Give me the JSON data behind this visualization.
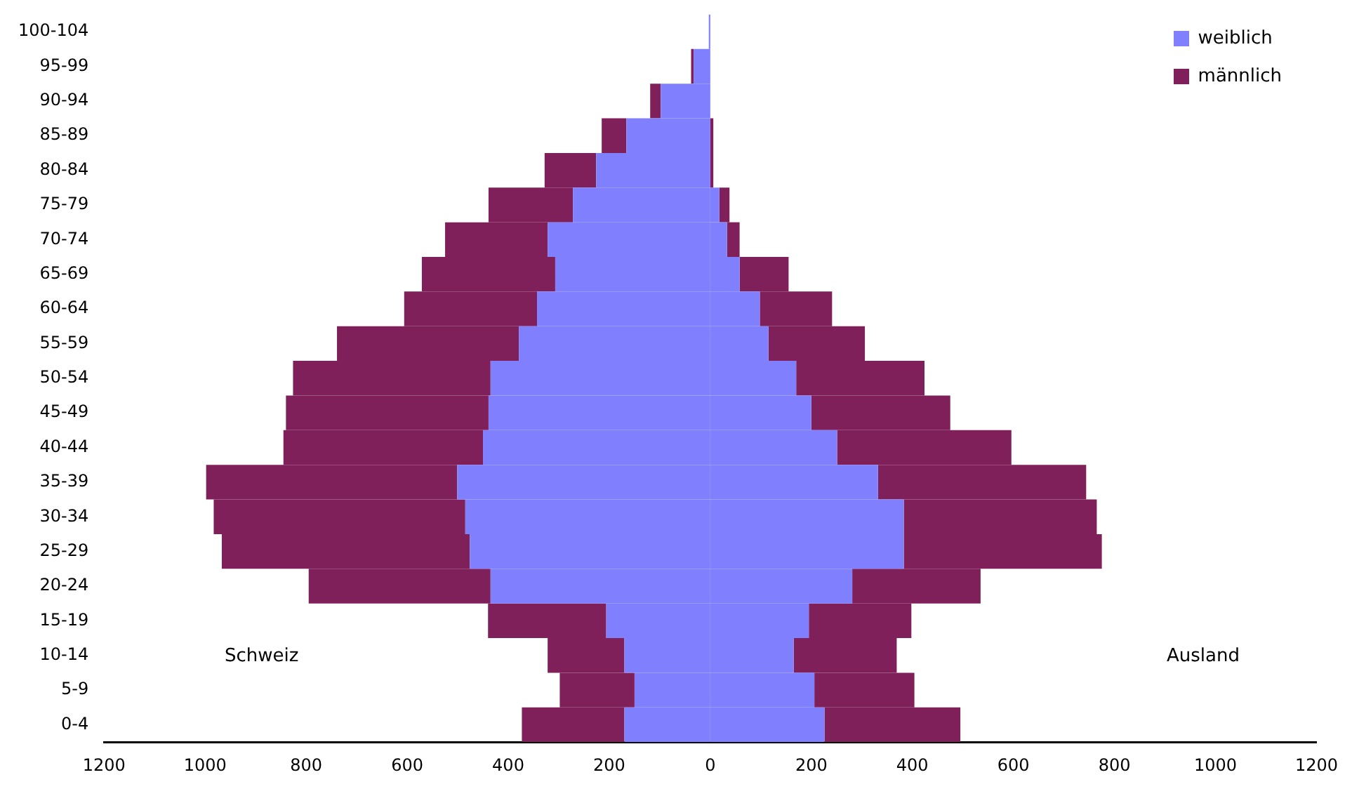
{
  "chart_data": {
    "type": "bar",
    "orientation": "horizontal",
    "stacked": true,
    "categories": [
      "100-104",
      "95-99",
      "90-94",
      "85-89",
      "80-84",
      "75-79",
      "70-74",
      "65-69",
      "60-64",
      "55-59",
      "50-54",
      "45-49",
      "40-44",
      "35-39",
      "30-34",
      "25-29",
      "20-24",
      "15-19",
      "10-14",
      "5-9",
      "0-4"
    ],
    "series": [
      {
        "color": "#8080ff",
        "values": [
          -3,
          -33,
          -98,
          -166,
          -226,
          -272,
          -322,
          -307,
          -343,
          -379,
          -435,
          -439,
          -450,
          -501,
          -485,
          -476,
          -435,
          -206,
          -170,
          -150,
          -170
        ]
      },
      {
        "color": "#80205a",
        "values": [
          0,
          -5,
          -21,
          -49,
          -102,
          -167,
          -203,
          -264,
          -263,
          -360,
          -391,
          -401,
          -395,
          -497,
          -498,
          -491,
          -360,
          -234,
          -152,
          -148,
          -203
        ]
      },
      {
        "name": "weiblich",
        "color": "#8080ff",
        "values": [
          0,
          0,
          0,
          0,
          0,
          18,
          33,
          58,
          98,
          115,
          170,
          200,
          251,
          332,
          383,
          383,
          281,
          195,
          165,
          206,
          226
        ]
      },
      {
        "name": "männlich",
        "color": "#80205a",
        "values": [
          0,
          0,
          0,
          6,
          6,
          20,
          25,
          97,
          143,
          191,
          254,
          275,
          345,
          412,
          382,
          392,
          254,
          203,
          204,
          198,
          269
        ]
      }
    ],
    "xlim": [
      -1200,
      1200
    ],
    "xticks": [
      {
        "value": -1200,
        "label": "1200"
      },
      {
        "value": -1000,
        "label": "1000"
      },
      {
        "value": -800,
        "label": "800"
      },
      {
        "value": -600,
        "label": "600"
      },
      {
        "value": -400,
        "label": "400"
      },
      {
        "value": -200,
        "label": "200"
      },
      0,
      200,
      400,
      600,
      800,
      1000,
      1200
    ],
    "grid": false,
    "legend": "top right",
    "annotations": [
      "Schweiz",
      "Ausland"
    ]
  }
}
